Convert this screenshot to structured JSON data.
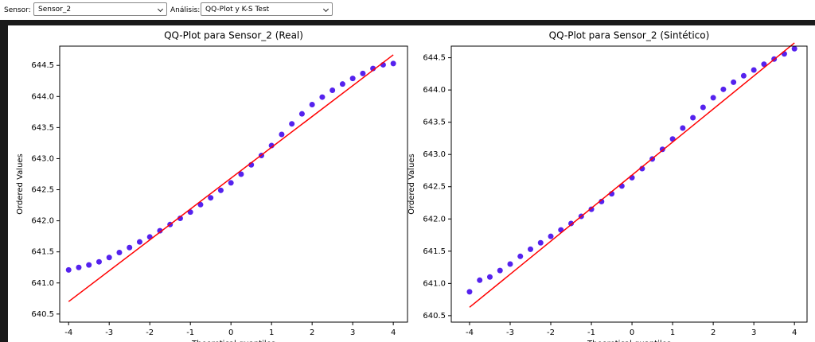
{
  "controls": [
    {
      "label": "Sensor:",
      "value": "Sensor_2"
    },
    {
      "label": "Análisis:",
      "value": "QQ-Plot y K-S Test"
    }
  ],
  "chart_data": [
    {
      "type": "scatter",
      "title": "QQ-Plot para Sensor_2 (Real)",
      "x_label": "Theoretical quantiles",
      "y_label": "Ordered Values",
      "x": [
        -4,
        -3.75,
        -3.5,
        -3.25,
        -3,
        -2.75,
        -2.5,
        -2.25,
        -2,
        -1.75,
        -1.5,
        -1.25,
        -1,
        -0.75,
        -0.5,
        -0.25,
        0,
        0.25,
        0.5,
        0.75,
        1,
        1.25,
        1.5,
        1.75,
        2,
        2.25,
        2.5,
        2.75,
        3,
        3.25,
        3.5,
        3.75,
        4
      ],
      "values": [
        641.21,
        641.25,
        641.29,
        641.34,
        641.41,
        641.49,
        641.57,
        641.66,
        641.74,
        641.84,
        641.94,
        642.04,
        642.14,
        642.26,
        642.37,
        642.49,
        642.61,
        642.75,
        642.9,
        643.05,
        643.21,
        643.39,
        643.56,
        643.72,
        643.87,
        643.99,
        644.1,
        644.2,
        644.29,
        644.37,
        644.45,
        644.51,
        644.53
      ],
      "color": "#5522ee",
      "fit_line": {
        "x": [
          -4,
          4
        ],
        "values": [
          640.7,
          644.67
        ],
        "color": "#ff0000"
      },
      "xlim": [
        -4.22,
        4.35
      ],
      "ylim": [
        640.37,
        644.81
      ],
      "xticks": [
        -4,
        -3,
        -2,
        -1,
        0,
        1,
        2,
        3,
        4
      ],
      "yticks": [
        640.5,
        {
          "value": 641,
          "label": "641.0"
        },
        641.5,
        {
          "value": 642,
          "label": "642.0"
        },
        642.5,
        {
          "value": 643,
          "label": "643.0"
        },
        643.5,
        {
          "value": 644,
          "label": "644.0"
        },
        644.5
      ]
    },
    {
      "type": "scatter",
      "title": "QQ-Plot para Sensor_2 (Sintético)",
      "x_label": "Theoretical quantiles",
      "y_label": "Ordered Values",
      "x": [
        -4,
        -3.75,
        -3.5,
        -3.25,
        -3,
        -2.75,
        -2.5,
        -2.25,
        -2,
        -1.75,
        -1.5,
        -1.25,
        -1,
        -0.75,
        -0.5,
        -0.25,
        0,
        0.25,
        0.5,
        0.75,
        1,
        1.25,
        1.5,
        1.75,
        2,
        2.25,
        2.5,
        2.75,
        3,
        3.25,
        3.5,
        3.75,
        4
      ],
      "values": [
        640.87,
        641.05,
        641.1,
        641.2,
        641.3,
        641.42,
        641.53,
        641.63,
        641.73,
        641.83,
        641.93,
        642.04,
        642.15,
        642.27,
        642.39,
        642.51,
        642.64,
        642.78,
        642.93,
        643.08,
        643.24,
        643.41,
        643.57,
        643.73,
        643.88,
        644.01,
        644.12,
        644.22,
        644.31,
        644.4,
        644.48,
        644.56,
        644.64
      ],
      "color": "#5522ee",
      "fit_line": {
        "x": [
          -4,
          4
        ],
        "values": [
          640.63,
          644.73
        ],
        "color": "#ff0000"
      },
      "xlim": [
        -4.45,
        4.31
      ],
      "ylim": [
        640.4,
        644.68
      ],
      "xticks": [
        -4,
        -3,
        -2,
        -1,
        0,
        1,
        2,
        3,
        4
      ],
      "yticks": [
        640.5,
        {
          "value": 641,
          "label": "641.0"
        },
        641.5,
        {
          "value": 642,
          "label": "642.0"
        },
        642.5,
        {
          "value": 643,
          "label": "643.0"
        },
        643.5,
        {
          "value": 644,
          "label": "644.0"
        },
        644.5
      ]
    }
  ]
}
